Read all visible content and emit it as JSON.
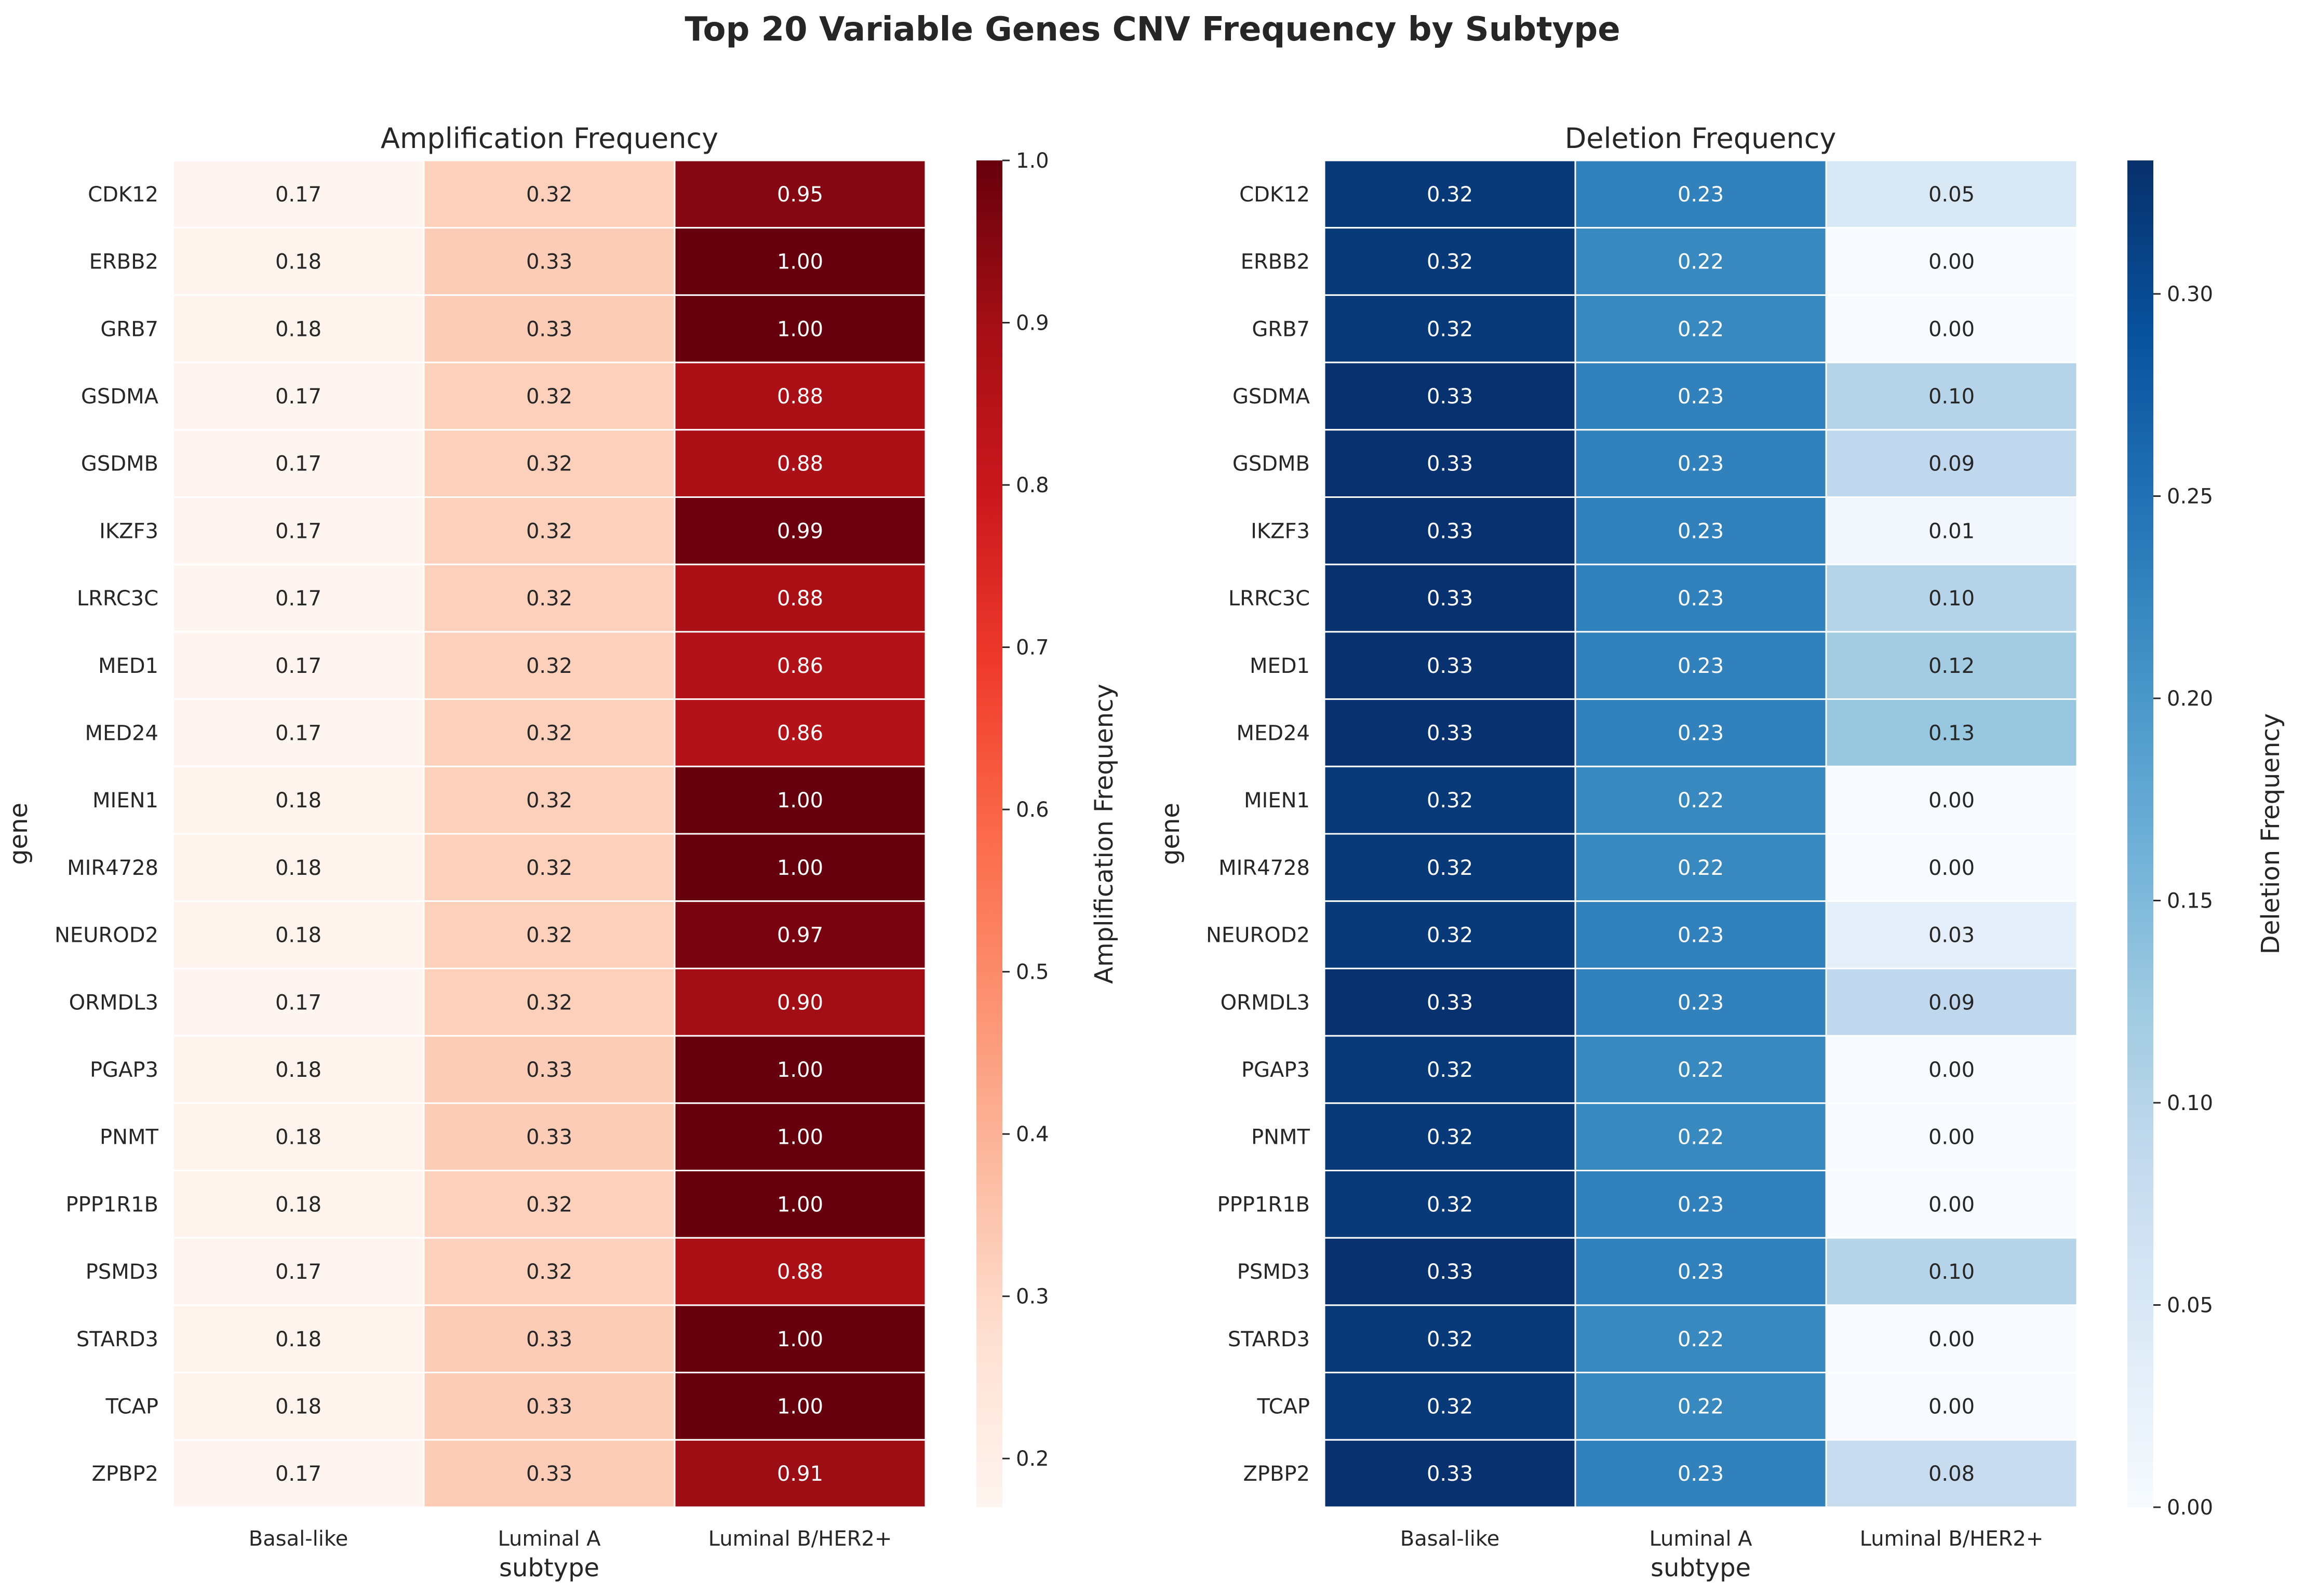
{
  "figure": {
    "title": "Top 20 Variable Genes CNV Frequency by Subtype"
  },
  "chart_data": [
    {
      "type": "heatmap",
      "title": "Amplification Frequency",
      "xlabel": "subtype",
      "ylabel": "gene",
      "colormap": "Reds",
      "colorbar_label": "Amplification Frequency",
      "vmin": 0.17,
      "vmax": 1.0,
      "colorbar_ticks": [
        "0.2",
        "0.3",
        "0.4",
        "0.5",
        "0.6",
        "0.7",
        "0.8",
        "0.9",
        "1.0"
      ],
      "x": [
        "Basal-like",
        "Luminal A",
        "Luminal B/HER2+"
      ],
      "y": [
        "CDK12",
        "ERBB2",
        "GRB7",
        "GSDMA",
        "GSDMB",
        "IKZF3",
        "LRRC3C",
        "MED1",
        "MED24",
        "MIEN1",
        "MIR4728",
        "NEUROD2",
        "ORMDL3",
        "PGAP3",
        "PNMT",
        "PPP1R1B",
        "PSMD3",
        "STARD3",
        "TCAP",
        "ZPBP2"
      ],
      "values": [
        [
          "0.17",
          "0.32",
          "0.95"
        ],
        [
          "0.18",
          "0.33",
          "1.00"
        ],
        [
          "0.18",
          "0.33",
          "1.00"
        ],
        [
          "0.17",
          "0.32",
          "0.88"
        ],
        [
          "0.17",
          "0.32",
          "0.88"
        ],
        [
          "0.17",
          "0.32",
          "0.99"
        ],
        [
          "0.17",
          "0.32",
          "0.88"
        ],
        [
          "0.17",
          "0.32",
          "0.86"
        ],
        [
          "0.17",
          "0.32",
          "0.86"
        ],
        [
          "0.18",
          "0.32",
          "1.00"
        ],
        [
          "0.18",
          "0.32",
          "1.00"
        ],
        [
          "0.18",
          "0.32",
          "0.97"
        ],
        [
          "0.17",
          "0.32",
          "0.90"
        ],
        [
          "0.18",
          "0.33",
          "1.00"
        ],
        [
          "0.18",
          "0.33",
          "1.00"
        ],
        [
          "0.18",
          "0.32",
          "1.00"
        ],
        [
          "0.17",
          "0.32",
          "0.88"
        ],
        [
          "0.18",
          "0.33",
          "1.00"
        ],
        [
          "0.18",
          "0.33",
          "1.00"
        ],
        [
          "0.17",
          "0.33",
          "0.91"
        ]
      ]
    },
    {
      "type": "heatmap",
      "title": "Deletion Frequency",
      "xlabel": "subtype",
      "ylabel": "gene",
      "colormap": "Blues",
      "colorbar_label": "Deletion Frequency",
      "vmin": 0.0,
      "vmax": 0.333,
      "colorbar_ticks": [
        "0.00",
        "0.05",
        "0.10",
        "0.15",
        "0.20",
        "0.25",
        "0.30"
      ],
      "x": [
        "Basal-like",
        "Luminal A",
        "Luminal B/HER2+"
      ],
      "y": [
        "CDK12",
        "ERBB2",
        "GRB7",
        "GSDMA",
        "GSDMB",
        "IKZF3",
        "LRRC3C",
        "MED1",
        "MED24",
        "MIEN1",
        "MIR4728",
        "NEUROD2",
        "ORMDL3",
        "PGAP3",
        "PNMT",
        "PPP1R1B",
        "PSMD3",
        "STARD3",
        "TCAP",
        "ZPBP2"
      ],
      "values": [
        [
          "0.32",
          "0.23",
          "0.05"
        ],
        [
          "0.32",
          "0.22",
          "0.00"
        ],
        [
          "0.32",
          "0.22",
          "0.00"
        ],
        [
          "0.33",
          "0.23",
          "0.10"
        ],
        [
          "0.33",
          "0.23",
          "0.09"
        ],
        [
          "0.33",
          "0.23",
          "0.01"
        ],
        [
          "0.33",
          "0.23",
          "0.10"
        ],
        [
          "0.33",
          "0.23",
          "0.12"
        ],
        [
          "0.33",
          "0.23",
          "0.13"
        ],
        [
          "0.32",
          "0.22",
          "0.00"
        ],
        [
          "0.32",
          "0.22",
          "0.00"
        ],
        [
          "0.32",
          "0.23",
          "0.03"
        ],
        [
          "0.33",
          "0.23",
          "0.09"
        ],
        [
          "0.32",
          "0.22",
          "0.00"
        ],
        [
          "0.32",
          "0.22",
          "0.00"
        ],
        [
          "0.32",
          "0.23",
          "0.00"
        ],
        [
          "0.33",
          "0.23",
          "0.10"
        ],
        [
          "0.32",
          "0.22",
          "0.00"
        ],
        [
          "0.32",
          "0.22",
          "0.00"
        ],
        [
          "0.33",
          "0.23",
          "0.08"
        ]
      ]
    }
  ]
}
